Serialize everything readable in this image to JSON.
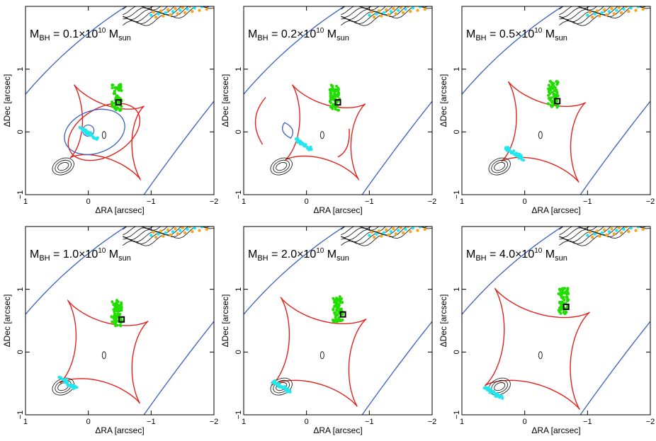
{
  "figure": {
    "xlabel": "ΔRA [arcsec]",
    "ylabel": "ΔDec [arcsec]",
    "xlim": [
      1,
      -2
    ],
    "ylim": [
      -1,
      2
    ],
    "xticks": [
      "1",
      "0",
      "−1",
      "−2"
    ],
    "xtick_values": [
      1,
      0,
      -1,
      -2
    ],
    "yticks": [
      "−1",
      "0",
      "1"
    ],
    "ytick_values": [
      -1,
      0,
      1
    ],
    "label_prefix": "M",
    "label_sub": "BH",
    "label_equals": " = ",
    "label_times": "×10",
    "label_exp": "10",
    "label_unit": "M",
    "label_unit_sub": "sun"
  },
  "colors": {
    "caustic": "#e3211c",
    "critical": "#3b5fbf",
    "galaxy_contour": "#222222",
    "source_green": "#22dd00",
    "source_cyan": "#22e6ee",
    "arc_orange": "#f5a623",
    "black_hole_marker": "#000000"
  },
  "chart_data": [
    {
      "type": "scatter",
      "panel": 1,
      "mbh": "0.1",
      "title": "M_BH = 0.1×10^10 M_sun",
      "bh_position": [
        -0.48,
        0.47
      ],
      "caustic_center": [
        -0.3,
        0.0
      ],
      "caustic_halfwidth": 0.72,
      "caustic_halfheight": 0.92,
      "caustic_rotation_deg": 35,
      "cyan_source_center": [
        0.0,
        -0.02
      ],
      "green_source_center": [
        -0.45,
        0.55
      ],
      "xlabel": "ΔRA [arcsec]",
      "ylabel": "ΔDec [arcsec]",
      "xlim": [
        1,
        -2
      ],
      "ylim": [
        -1,
        2
      ]
    },
    {
      "type": "scatter",
      "panel": 2,
      "mbh": "0.2",
      "title": "M_BH = 0.2×10^10 M_sun",
      "bh_position": [
        -0.5,
        0.47
      ],
      "caustic_center": [
        -0.3,
        0.0
      ],
      "caustic_halfwidth": 0.78,
      "caustic_halfheight": 0.92,
      "caustic_rotation_deg": 35,
      "cyan_source_center": [
        0.05,
        -0.2
      ],
      "green_source_center": [
        -0.45,
        0.55
      ],
      "xlabel": "ΔRA [arcsec]",
      "ylabel": "ΔDec [arcsec]",
      "xlim": [
        1,
        -2
      ],
      "ylim": [
        -1,
        2
      ]
    },
    {
      "type": "scatter",
      "panel": 3,
      "mbh": "0.5",
      "title": "M_BH = 0.5×10^10 M_sun",
      "bh_position": [
        -0.52,
        0.49
      ],
      "caustic_center": [
        -0.3,
        0.0
      ],
      "caustic_halfwidth": 0.82,
      "caustic_halfheight": 0.98,
      "caustic_rotation_deg": 35,
      "cyan_source_center": [
        0.15,
        -0.35
      ],
      "green_source_center": [
        -0.45,
        0.6
      ],
      "xlabel": "ΔRA [arcsec]",
      "ylabel": "ΔDec [arcsec]",
      "xlim": [
        1,
        -2
      ],
      "ylim": [
        -1,
        2
      ]
    },
    {
      "type": "scatter",
      "panel": 4,
      "mbh": "1.0",
      "title": "M_BH = 1.0×10^10 M_sun",
      "bh_position": [
        -0.53,
        0.52
      ],
      "caustic_center": [
        -0.25,
        0.0
      ],
      "caustic_halfwidth": 0.86,
      "caustic_halfheight": 1.0,
      "caustic_rotation_deg": 35,
      "cyan_source_center": [
        0.32,
        -0.5
      ],
      "green_source_center": [
        -0.45,
        0.62
      ],
      "xlabel": "ΔRA [arcsec]",
      "ylabel": "ΔDec [arcsec]",
      "xlim": [
        1,
        -2
      ],
      "ylim": [
        -1,
        2
      ]
    },
    {
      "type": "scatter",
      "panel": 5,
      "mbh": "2.0",
      "title": "M_BH = 2.0×10^10 M_sun",
      "bh_position": [
        -0.58,
        0.6
      ],
      "caustic_center": [
        -0.2,
        0.0
      ],
      "caustic_halfwidth": 0.92,
      "caustic_halfheight": 1.06,
      "caustic_rotation_deg": 35,
      "cyan_source_center": [
        0.4,
        -0.55
      ],
      "green_source_center": [
        -0.5,
        0.68
      ],
      "xlabel": "ΔRA [arcsec]",
      "ylabel": "ΔDec [arcsec]",
      "xlim": [
        1,
        -2
      ],
      "ylim": [
        -1,
        2
      ]
    },
    {
      "type": "scatter",
      "panel": 6,
      "mbh": "4.0",
      "title": "M_BH = 4.0×10^10 M_sun",
      "bh_position": [
        -0.66,
        0.72
      ],
      "caustic_center": [
        -0.2,
        0.05
      ],
      "caustic_halfwidth": 1.02,
      "caustic_halfheight": 1.18,
      "caustic_rotation_deg": 35,
      "cyan_source_center": [
        0.5,
        -0.65
      ],
      "green_source_center": [
        -0.62,
        0.82
      ],
      "xlabel": "ΔRA [arcsec]",
      "ylabel": "ΔDec [arcsec]",
      "xlim": [
        1,
        -2
      ],
      "ylim": [
        -1,
        2
      ]
    }
  ]
}
